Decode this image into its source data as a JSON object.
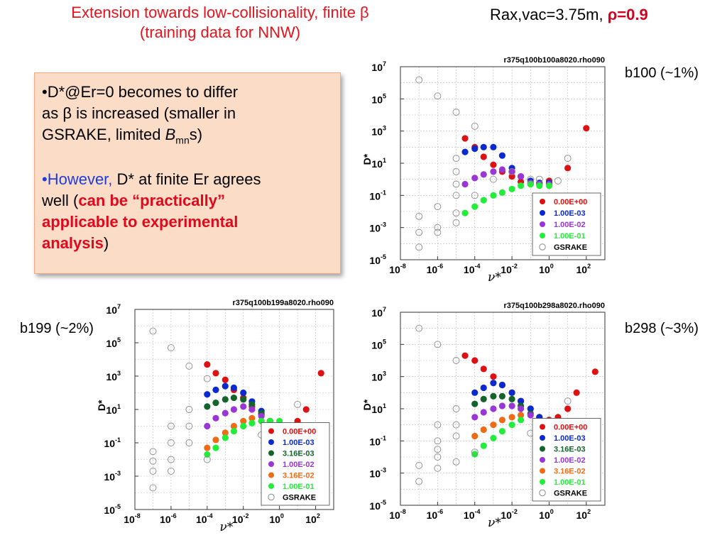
{
  "slide": {
    "title_line1": "Extension towards low-collisionality, finite β",
    "title_line2": "(training data for NNW)",
    "rax_label": "Rax,vac=3.75m, ",
    "rho_label": "ρ=0.9",
    "bullet1_line1": "•D*@Er=0 becomes to differ",
    "bullet1_line2": "as β is increased (smaller in",
    "bullet1_line3_pre": "GSRAKE, limited ",
    "bullet1_line3_B": "B",
    "bullet1_line3_sub": "mn",
    "bullet1_line3_post": "s)",
    "bullet2_however": "•However, ",
    "bullet2_rest": "D* at finite Er agrees",
    "bullet2_line2_pre": "well (",
    "bullet2_line2_red": "can be “practically”",
    "bullet2_line3_red": "applicable to experimental",
    "bullet2_line4_red": "analysis",
    "bullet2_line4_post": ")",
    "b100_tag": "b100 (~1%)",
    "b199_tag": "b199 (~2%)",
    "b298_tag": "b298 (~3%)",
    "colors": {
      "0.00E+00": "#dd1111",
      "1.00E-03": "#0a2ad0",
      "3.16E-03": "#13642a",
      "1.00E-02": "#9a35d6",
      "3.16E-02": "#ef6c16",
      "1.00E-01": "#22ee3a",
      "GSRAKE": "#888888"
    }
  },
  "chart_data": [
    {
      "type": "scatter",
      "title": "r375q100b100a8020.rho090",
      "xlabel": "ν*",
      "ylabel": "D*",
      "xscale": "log",
      "yscale": "log",
      "xlim": [
        1e-08,
        1000.0
      ],
      "ylim": [
        1e-05,
        10000000.0
      ],
      "xticks": [
        {
          "e": "-8"
        },
        {
          "e": "-6"
        },
        {
          "e": "-4"
        },
        {
          "e": "-2"
        },
        {
          "e": "0"
        },
        {
          "e": "2"
        }
      ],
      "yticks": [
        {
          "e": "-5"
        },
        {
          "e": "-3"
        },
        {
          "e": "-1"
        },
        {
          "e": "1"
        },
        {
          "e": "3"
        },
        {
          "e": "5"
        },
        {
          "e": "7"
        }
      ],
      "grid": true,
      "legend_position": "bottom-right",
      "series": [
        {
          "name": "0.00E+00",
          "points": [
            [
              3e-05,
              350.0
            ],
            [
              0.0001,
              100.0
            ],
            [
              0.0003,
              25.0
            ],
            [
              0.001,
              8
            ],
            [
              0.003,
              3
            ],
            [
              0.01,
              1.5
            ],
            [
              0.03,
              0.7
            ],
            [
              0.1,
              0.5
            ],
            [
              0.3,
              0.5
            ],
            [
              1,
              0.8
            ],
            [
              10,
              5
            ],
            [
              100,
              1500.0
            ]
          ]
        },
        {
          "name": "1.00E-03",
          "points": [
            [
              3e-05,
              50.0
            ],
            [
              0.0001,
              80.0
            ],
            [
              0.0003,
              100.0
            ],
            [
              0.001,
              100.0
            ],
            [
              0.003,
              30.0
            ],
            [
              0.01,
              5
            ],
            [
              0.03,
              1.5
            ],
            [
              0.1,
              0.8
            ],
            [
              0.3,
              0.6
            ],
            [
              1,
              0.6
            ]
          ]
        },
        {
          "name": "1.00E-02",
          "points": [
            [
              3e-05,
              0.5
            ],
            [
              0.0001,
              1.2
            ],
            [
              0.0003,
              2
            ],
            [
              0.001,
              3
            ],
            [
              0.003,
              4
            ],
            [
              0.01,
              3
            ],
            [
              0.03,
              1.5
            ],
            [
              0.1,
              0.6
            ],
            [
              0.3,
              0.5
            ],
            [
              1,
              0.5
            ]
          ]
        },
        {
          "name": "1.00E-01",
          "points": [
            [
              3e-05,
              0.008
            ],
            [
              0.0001,
              0.02
            ],
            [
              0.0003,
              0.05
            ],
            [
              0.001,
              0.1
            ],
            [
              0.003,
              0.15
            ],
            [
              0.01,
              0.25
            ],
            [
              0.03,
              0.4
            ],
            [
              0.1,
              0.5
            ],
            [
              0.3,
              0.4
            ],
            [
              1,
              0.4
            ]
          ]
        },
        {
          "name": "GSRAKE",
          "points": [
            [
              1e-07,
              1500000.0
            ],
            [
              1e-06,
              150000.0
            ],
            [
              1e-05,
              15000.0
            ],
            [
              0.0001,
              2000.0
            ],
            [
              1e-07,
              0.005
            ],
            [
              1e-07,
              0.0005
            ],
            [
              1e-07,
              6e-05
            ],
            [
              1e-06,
              0.0005
            ],
            [
              1e-06,
              0.001
            ],
            [
              1e-06,
              0.02
            ],
            [
              1e-05,
              0.002
            ],
            [
              1e-05,
              0.008
            ],
            [
              1e-05,
              0.1
            ],
            [
              1e-05,
              0.5
            ],
            [
              1e-05,
              3
            ],
            [
              1e-05,
              20.0
            ],
            [
              0.0001,
              0.1
            ],
            [
              0.001,
              1
            ],
            [
              0.01,
              3
            ],
            [
              0.1,
              1
            ],
            [
              0.3,
              1
            ],
            [
              3,
              0.8
            ],
            [
              10,
              20.0
            ]
          ]
        }
      ]
    },
    {
      "type": "scatter",
      "title": "r375q100b199a8020.rho090",
      "xlabel": "ν*",
      "ylabel": "D*",
      "xscale": "log",
      "yscale": "log",
      "xlim": [
        1e-08,
        1000.0
      ],
      "ylim": [
        1e-05,
        10000000.0
      ],
      "xticks": [
        {
          "e": "-8"
        },
        {
          "e": "-6"
        },
        {
          "e": "-4"
        },
        {
          "e": "-2"
        },
        {
          "e": "0"
        },
        {
          "e": "2"
        }
      ],
      "yticks": [
        {
          "e": "-5"
        },
        {
          "e": "-3"
        },
        {
          "e": "-1"
        },
        {
          "e": "1"
        },
        {
          "e": "3"
        },
        {
          "e": "5"
        },
        {
          "e": "7"
        }
      ],
      "grid": true,
      "legend_position": "bottom-right",
      "series": [
        {
          "name": "0.00E+00",
          "points": [
            [
              0.0001,
              5000.0
            ],
            [
              0.0003,
              1500.0
            ],
            [
              0.001,
              600.0
            ],
            [
              0.003,
              150.0
            ],
            [
              0.01,
              50.0
            ],
            [
              0.03,
              15.0
            ],
            [
              0.1,
              5
            ],
            [
              0.3,
              2
            ],
            [
              1,
              1
            ],
            [
              3,
              1
            ],
            [
              10,
              2
            ],
            [
              30,
              10.0
            ],
            [
              200,
              1500.0
            ]
          ]
        },
        {
          "name": "1.00E-03",
          "points": [
            [
              0.0001,
              80.0
            ],
            [
              0.0003,
              150.0
            ],
            [
              0.001,
              250.0
            ],
            [
              0.003,
              200.0
            ],
            [
              0.01,
              100.0
            ],
            [
              0.03,
              30.0
            ],
            [
              0.1,
              8
            ],
            [
              0.3,
              2
            ],
            [
              1,
              1
            ]
          ]
        },
        {
          "name": "3.16E-03",
          "points": [
            [
              0.0001,
              15.0
            ],
            [
              0.0003,
              25.0
            ],
            [
              0.001,
              40.0
            ],
            [
              0.003,
              50.0
            ],
            [
              0.01,
              40.0
            ],
            [
              0.03,
              20.0
            ],
            [
              0.1,
              6
            ],
            [
              0.3,
              2
            ]
          ]
        },
        {
          "name": "1.00E-02",
          "points": [
            [
              0.0001,
              1
            ],
            [
              0.0003,
              3
            ],
            [
              0.001,
              6
            ],
            [
              0.003,
              10.0
            ],
            [
              0.01,
              15.0
            ],
            [
              0.03,
              10.0
            ],
            [
              0.1,
              4
            ]
          ]
        },
        {
          "name": "3.16E-02",
          "points": [
            [
              0.0001,
              0.05
            ],
            [
              0.0003,
              0.15
            ],
            [
              0.001,
              0.4
            ],
            [
              0.003,
              1
            ],
            [
              0.01,
              2
            ],
            [
              0.03,
              3
            ],
            [
              0.1,
              2
            ]
          ]
        },
        {
          "name": "1.00E-01",
          "points": [
            [
              0.0001,
              0.02
            ],
            [
              0.0003,
              0.05
            ],
            [
              0.001,
              0.2
            ],
            [
              0.003,
              0.5
            ],
            [
              0.01,
              1
            ],
            [
              0.03,
              1.5
            ],
            [
              0.1,
              2
            ],
            [
              0.3,
              2
            ],
            [
              1,
              2
            ]
          ]
        },
        {
          "name": "GSRAKE",
          "points": [
            [
              1e-07,
              500000.0
            ],
            [
              1e-06,
              50000.0
            ],
            [
              1e-05,
              4000.0
            ],
            [
              0.0001,
              700.0
            ],
            [
              1e-07,
              0.03
            ],
            [
              1e-07,
              0.008
            ],
            [
              1e-07,
              0.002
            ],
            [
              1e-07,
              0.0002
            ],
            [
              1e-06,
              0.002
            ],
            [
              1e-06,
              0.01
            ],
            [
              1e-06,
              0.1
            ],
            [
              1e-06,
              1
            ],
            [
              1e-05,
              0.1
            ],
            [
              1e-05,
              1
            ],
            [
              1e-05,
              10.0
            ],
            [
              0.0001,
              0.01
            ],
            [
              0.1,
              0.3
            ],
            [
              0.3,
              1
            ],
            [
              10,
              20.0
            ]
          ]
        }
      ]
    },
    {
      "type": "scatter",
      "title": "r375q100b298a8020.rho090",
      "xlabel": "ν*",
      "ylabel": "D*",
      "xscale": "log",
      "yscale": "log",
      "xlim": [
        1e-08,
        1000.0
      ],
      "ylim": [
        1e-05,
        10000000.0
      ],
      "xticks": [
        {
          "e": "-8"
        },
        {
          "e": "-6"
        },
        {
          "e": "-4"
        },
        {
          "e": "-2"
        },
        {
          "e": "0"
        },
        {
          "e": "2"
        }
      ],
      "yticks": [
        {
          "e": "-5"
        },
        {
          "e": "-3"
        },
        {
          "e": "-1"
        },
        {
          "e": "1"
        },
        {
          "e": "3"
        },
        {
          "e": "5"
        },
        {
          "e": "7"
        }
      ],
      "grid": true,
      "legend_position": "bottom-right",
      "series": [
        {
          "name": "0.00E+00",
          "points": [
            [
              3e-05,
              20000.0
            ],
            [
              0.0001,
              10000.0
            ],
            [
              0.0003,
              3000.0
            ],
            [
              0.001,
              1000.0
            ],
            [
              0.003,
              300.0
            ],
            [
              0.01,
              100.0
            ],
            [
              0.03,
              30.0
            ],
            [
              0.1,
              10.0
            ],
            [
              0.3,
              3
            ],
            [
              1,
              2
            ],
            [
              3,
              3
            ],
            [
              10,
              10.0
            ],
            [
              30,
              100.0
            ],
            [
              300,
              2000.0
            ]
          ]
        },
        {
          "name": "1.00E-03",
          "points": [
            [
              0.0001,
              100.0
            ],
            [
              0.0003,
              200.0
            ],
            [
              0.001,
              400.0
            ],
            [
              0.003,
              300.0
            ],
            [
              0.01,
              100.0
            ],
            [
              0.03,
              30.0
            ],
            [
              0.1,
              10.0
            ],
            [
              0.3,
              3
            ]
          ]
        },
        {
          "name": "3.16E-03",
          "points": [
            [
              0.0001,
              20.0
            ],
            [
              0.0003,
              40.0
            ],
            [
              0.001,
              60.0
            ],
            [
              0.003,
              60.0
            ],
            [
              0.01,
              40.0
            ],
            [
              0.03,
              15.0
            ],
            [
              0.1,
              5
            ]
          ]
        },
        {
          "name": "1.00E-02",
          "points": [
            [
              0.0001,
              3
            ],
            [
              0.0003,
              6
            ],
            [
              0.001,
              10.0
            ],
            [
              0.003,
              15.0
            ],
            [
              0.01,
              15.0
            ],
            [
              0.03,
              10.0
            ],
            [
              0.1,
              4
            ]
          ]
        },
        {
          "name": "3.16E-02",
          "points": [
            [
              0.0001,
              0.2
            ],
            [
              0.0003,
              0.5
            ],
            [
              0.001,
              1
            ],
            [
              0.003,
              2
            ],
            [
              0.01,
              3
            ],
            [
              0.03,
              4
            ]
          ]
        },
        {
          "name": "1.00E-01",
          "points": [
            [
              0.0001,
              0.015
            ],
            [
              0.0003,
              0.05
            ],
            [
              0.001,
              0.15
            ],
            [
              0.003,
              0.4
            ],
            [
              0.01,
              1
            ],
            [
              0.03,
              2
            ]
          ]
        },
        {
          "name": "GSRAKE",
          "points": [
            [
              1e-07,
              1000000.0
            ],
            [
              1e-06,
              100000.0
            ],
            [
              1e-05,
              10000.0
            ],
            [
              1e-07,
              0.003
            ],
            [
              1e-07,
              0.0003
            ],
            [
              1e-06,
              0.002
            ],
            [
              1e-06,
              0.01
            ],
            [
              1e-06,
              0.1
            ],
            [
              1e-06,
              1
            ],
            [
              1e-06,
              0.03
            ],
            [
              1e-05,
              0.2
            ],
            [
              1e-05,
              1
            ],
            [
              1e-05,
              10.0
            ],
            [
              1e-05,
              0.005
            ],
            [
              0.0001,
              0.02
            ],
            [
              0.1,
              0.3
            ],
            [
              0.3,
              1
            ],
            [
              1,
              2
            ],
            [
              10,
              30.0
            ]
          ]
        }
      ]
    }
  ]
}
